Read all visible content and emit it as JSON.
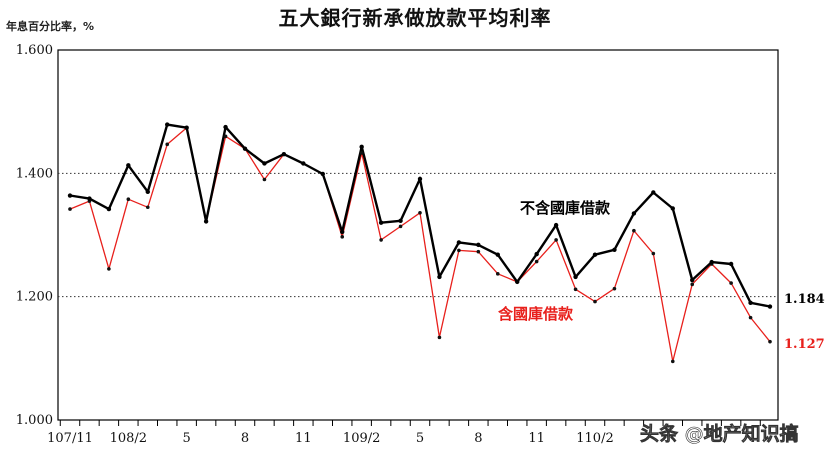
{
  "chart_data": {
    "type": "line",
    "title": "五大銀行新承做放款平均利率",
    "ylabel": "年息百分比率，%",
    "ylim": [
      1.0,
      1.6
    ],
    "yticks": [
      "1.000",
      "1.200",
      "1.400",
      "1.600"
    ],
    "grid": "dotted horizontal at 1.200 and 1.400",
    "x_tick_labels": [
      {
        "index": 0,
        "label": "107/11"
      },
      {
        "index": 3,
        "label": "108/2"
      },
      {
        "index": 6,
        "label": "5"
      },
      {
        "index": 9,
        "label": "8"
      },
      {
        "index": 12,
        "label": "11"
      },
      {
        "index": 15,
        "label": "109/2"
      },
      {
        "index": 18,
        "label": "5"
      },
      {
        "index": 21,
        "label": "8"
      },
      {
        "index": 24,
        "label": "11"
      },
      {
        "index": 27,
        "label": "110/2"
      }
    ],
    "series": [
      {
        "name": "不含國庫借款",
        "color": "#000000",
        "values": [
          1.364,
          1.359,
          1.342,
          1.413,
          1.37,
          1.479,
          1.474,
          1.322,
          1.475,
          1.44,
          1.416,
          1.431,
          1.416,
          1.399,
          1.305,
          1.443,
          1.32,
          1.323,
          1.391,
          1.232,
          1.288,
          1.284,
          1.268,
          1.224,
          1.269,
          1.316,
          1.232,
          1.268,
          1.276,
          1.335,
          1.369,
          1.343,
          1.227,
          1.256,
          1.253,
          1.19,
          1.184
        ],
        "end_label": "1.184"
      },
      {
        "name": "含國庫借款",
        "color": "#e8201c",
        "values": [
          1.342,
          1.355,
          1.245,
          1.358,
          1.345,
          1.447,
          1.474,
          1.322,
          1.46,
          1.44,
          1.39,
          1.431,
          1.416,
          1.399,
          1.297,
          1.433,
          1.292,
          1.314,
          1.336,
          1.134,
          1.275,
          1.273,
          1.237,
          1.224,
          1.257,
          1.292,
          1.212,
          1.192,
          1.213,
          1.307,
          1.27,
          1.095,
          1.22,
          1.253,
          1.222,
          1.166,
          1.127
        ],
        "end_label": "1.127"
      }
    ]
  },
  "watermarks": [
    "头条 @地产知识搞",
    "地产知识搞"
  ]
}
